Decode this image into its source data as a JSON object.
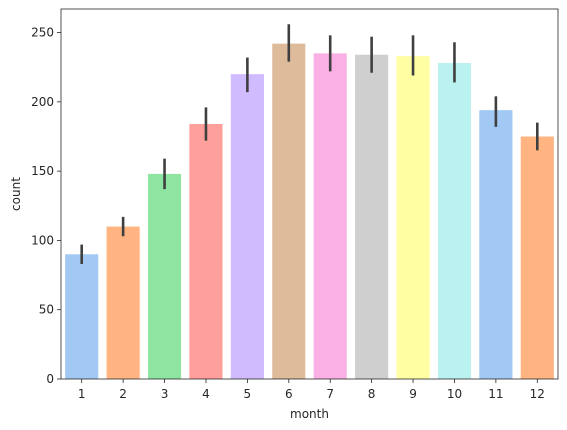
{
  "chart_data": {
    "type": "bar",
    "xlabel": "month",
    "ylabel": "count",
    "categories": [
      "1",
      "2",
      "3",
      "4",
      "5",
      "6",
      "7",
      "8",
      "9",
      "10",
      "11",
      "12"
    ],
    "values": [
      90,
      110,
      148,
      184,
      220,
      242,
      235,
      234,
      233,
      228,
      194,
      175
    ],
    "error_low": [
      83,
      103,
      137,
      172,
      207,
      229,
      222,
      221,
      219,
      214,
      182,
      165
    ],
    "error_high": [
      97,
      117,
      159,
      196,
      232,
      256,
      248,
      247,
      248,
      243,
      204,
      185
    ],
    "ylim": [
      0,
      267
    ],
    "yticks": [
      0,
      50,
      100,
      150,
      200,
      250
    ],
    "colors": [
      "#a1c9f4",
      "#ffb482",
      "#8de5a1",
      "#ff9f9b",
      "#d0bbff",
      "#debb9b",
      "#fab0e4",
      "#cfcfcf",
      "#fffea3",
      "#b9f2f0",
      "#a1c9f4",
      "#ffb482"
    ],
    "grid": false,
    "legend": "none"
  }
}
